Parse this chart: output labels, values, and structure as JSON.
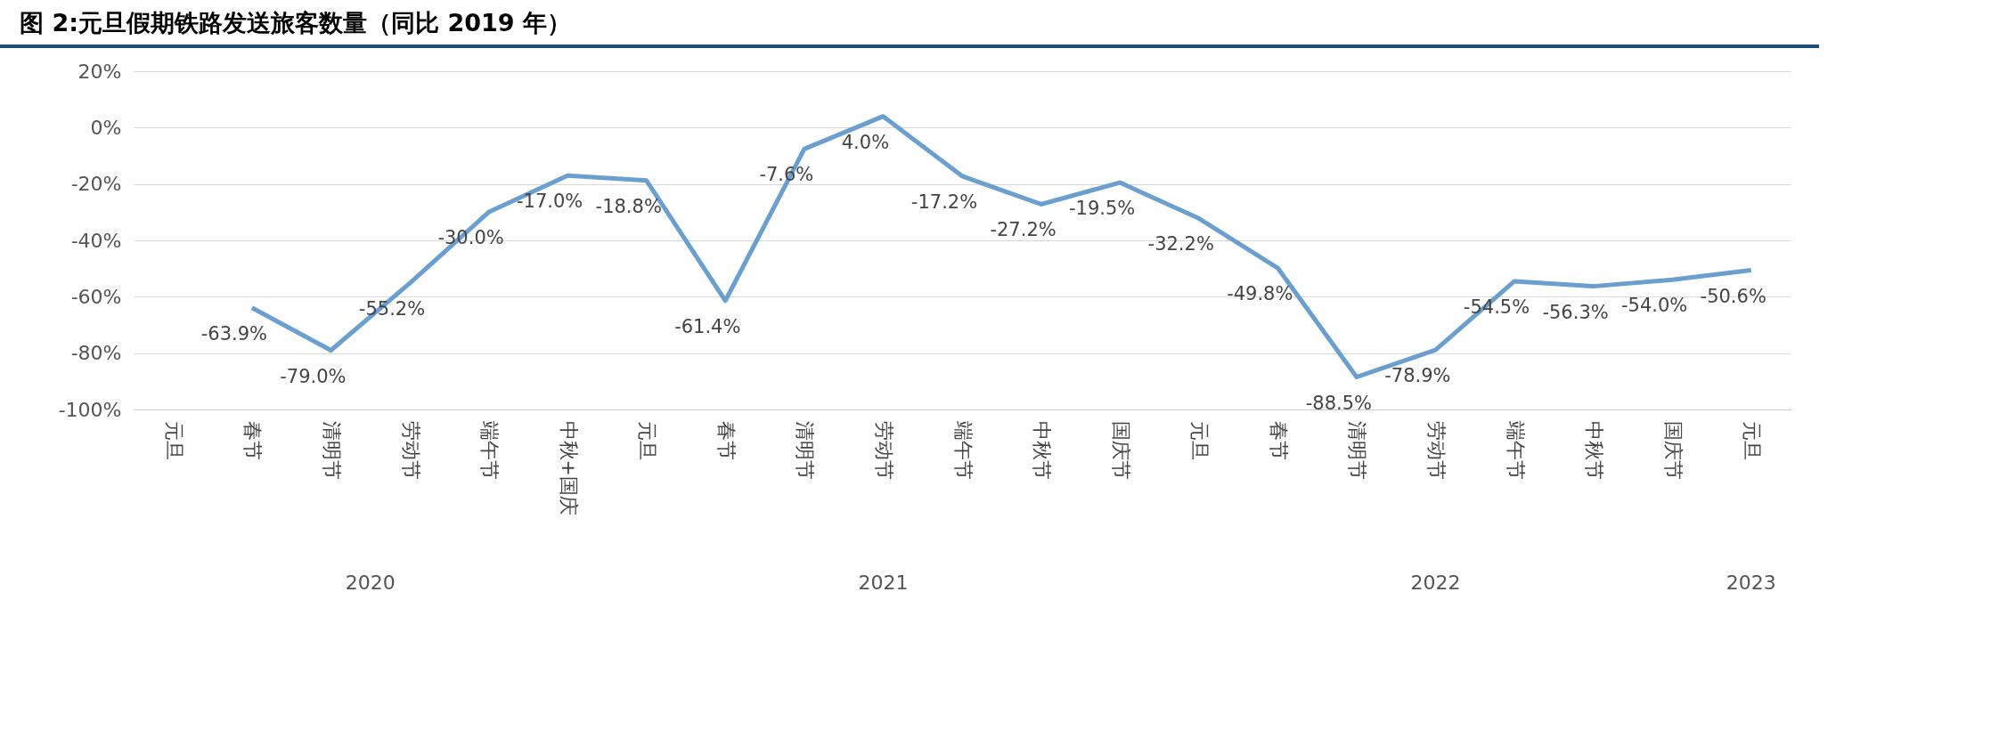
{
  "chart_data": {
    "type": "line",
    "title": "图 2:元旦假期铁路发送旅客数量（同比 2019 年）",
    "categories": [
      "元旦",
      "春节",
      "清明节",
      "劳动节",
      "端午节",
      "中秋+国庆",
      "元旦",
      "春节",
      "清明节",
      "劳动节",
      "端午节",
      "中秋节",
      "国庆节",
      "元旦",
      "春节",
      "清明节",
      "劳动节",
      "端午节",
      "中秋节",
      "国庆节",
      "元旦"
    ],
    "values": [
      null,
      -63.9,
      -79.0,
      -55.2,
      -30.0,
      -17.0,
      -18.8,
      -61.4,
      -7.6,
      4.0,
      -17.2,
      -27.2,
      -19.5,
      -32.2,
      -49.8,
      -88.5,
      -78.9,
      -54.5,
      -56.3,
      -54.0,
      -50.6
    ],
    "value_labels": [
      null,
      "-63.9%",
      "-79.0%",
      "-55.2%",
      "-30.0%",
      "-17.0%",
      "-18.8%",
      "-61.4%",
      "-7.6%",
      "4.0%",
      "-17.2%",
      "-27.2%",
      "-19.5%",
      "-32.2%",
      "-49.8%",
      "-88.5%",
      "-78.9%",
      "-54.5%",
      "-56.3%",
      "-54.0%",
      "-50.6%"
    ],
    "color": "#6a9fd0",
    "ylim": [
      -100,
      20
    ],
    "yticks": [
      {
        "value": -100,
        "label": "-100%"
      },
      {
        "value": -80,
        "label": "-80%"
      },
      {
        "value": -60,
        "label": "-60%"
      },
      {
        "value": -40,
        "label": "-40%"
      },
      {
        "value": -20,
        "label": "-20%"
      },
      {
        "value": 0,
        "label": "0%"
      },
      {
        "value": 20,
        "label": "20%"
      }
    ],
    "grid": "y",
    "marker": "none",
    "line_style": "solid",
    "annotations": [
      "2020",
      "2021",
      "2022",
      "2023"
    ]
  }
}
